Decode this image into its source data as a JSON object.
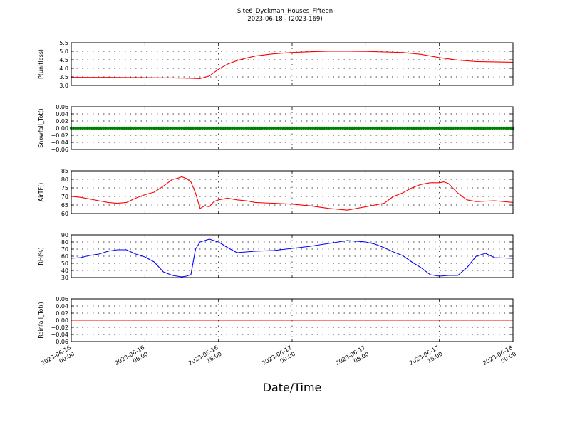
{
  "figure": {
    "title_line1": "Site6_Dyckman_Houses_Fifteen",
    "title_line2": "2023-06-18 - (2023-169)",
    "xlabel": "Date/Time"
  },
  "chart_data": {
    "type": "line",
    "title": "Site6_Dyckman_Houses_Fifteen",
    "subtitle": "2023-06-18 - (2023-169)",
    "xlabel": "Date/Time",
    "x_range": [
      "2023-06-16 00:00",
      "2023-06-18 00:00"
    ],
    "x_tick_labels": [
      [
        "2023-06-16",
        "00:00"
      ],
      [
        "2023-06-16",
        "08:00"
      ],
      [
        "2023-06-16",
        "16:00"
      ],
      [
        "2023-06-17",
        "00:00"
      ],
      [
        "2023-06-17",
        "08:00"
      ],
      [
        "2023-06-17",
        "16:00"
      ],
      [
        "2023-06-18",
        "00:00"
      ]
    ],
    "grid": true,
    "panels": [
      {
        "ylabel": "P(unitless)",
        "ylim": [
          3.0,
          5.5
        ],
        "yticks": [
          "3.0",
          "3.5",
          "4.0",
          "4.5",
          "5.0",
          "5.5"
        ],
        "color": "#ff0000",
        "marker": false,
        "series": {
          "x": [
            "2023-06-16 00:00",
            "2023-06-16 04:00",
            "2023-06-16 08:00",
            "2023-06-16 11:00",
            "2023-06-16 13:00",
            "2023-06-16 14:00",
            "2023-06-16 15:00",
            "2023-06-16 16:00",
            "2023-06-16 17:00",
            "2023-06-16 18:00",
            "2023-06-16 19:00",
            "2023-06-16 20:00",
            "2023-06-16 22:00",
            "2023-06-17 00:00",
            "2023-06-17 02:00",
            "2023-06-17 04:00",
            "2023-06-17 06:00",
            "2023-06-17 08:00",
            "2023-06-17 10:00",
            "2023-06-17 12:00",
            "2023-06-17 14:00",
            "2023-06-17 16:00",
            "2023-06-17 18:00",
            "2023-06-17 20:00",
            "2023-06-17 22:00",
            "2023-06-18 00:00"
          ],
          "y": [
            3.47,
            3.47,
            3.46,
            3.44,
            3.42,
            3.4,
            3.55,
            3.95,
            4.25,
            4.45,
            4.6,
            4.72,
            4.85,
            4.93,
            4.97,
            5.0,
            5.0,
            4.99,
            4.96,
            4.93,
            4.82,
            4.63,
            4.48,
            4.4,
            4.38,
            4.36
          ]
        }
      },
      {
        "ylabel": "Snowfall_Tot()",
        "ylim": [
          -0.06,
          0.06
        ],
        "yticks": [
          "0.06",
          "0.04",
          "0.02",
          "0.00",
          "−0.02",
          "−0.04",
          "−0.06"
        ],
        "color": "#008000",
        "marker": true,
        "series": {
          "x_start": "2023-06-16 00:00",
          "x_end": "2023-06-18 00:00",
          "interval_minutes": 15,
          "value": 0.0
        }
      },
      {
        "ylabel": "AirTF()",
        "ylim": [
          60,
          85
        ],
        "yticks": [
          "60",
          "65",
          "70",
          "75",
          "80",
          "85"
        ],
        "color": "#ff0000",
        "marker": false,
        "series": {
          "x": [
            "2023-06-16 00:00",
            "2023-06-16 01:00",
            "2023-06-16 02:00",
            "2023-06-16 03:00",
            "2023-06-16 04:00",
            "2023-06-16 05:00",
            "2023-06-16 06:00",
            "2023-06-16 07:00",
            "2023-06-16 08:00",
            "2023-06-16 09:00",
            "2023-06-16 10:00",
            "2023-06-16 11:00",
            "2023-06-16 11:30",
            "2023-06-16 12:00",
            "2023-06-16 12:30",
            "2023-06-16 13:00",
            "2023-06-16 13:30",
            "2023-06-16 14:00",
            "2023-06-16 14:30",
            "2023-06-16 15:00",
            "2023-06-16 15:30",
            "2023-06-16 16:00",
            "2023-06-16 17:00",
            "2023-06-16 18:00",
            "2023-06-16 19:00",
            "2023-06-16 20:00",
            "2023-06-16 22:00",
            "2023-06-17 00:00",
            "2023-06-17 02:00",
            "2023-06-17 04:00",
            "2023-06-17 06:00",
            "2023-06-17 08:00",
            "2023-06-17 09:00",
            "2023-06-17 10:00",
            "2023-06-17 11:00",
            "2023-06-17 12:00",
            "2023-06-17 13:00",
            "2023-06-17 14:00",
            "2023-06-17 15:00",
            "2023-06-17 16:00",
            "2023-06-17 16:30",
            "2023-06-17 17:00",
            "2023-06-17 18:00",
            "2023-06-17 19:00",
            "2023-06-17 20:00",
            "2023-06-17 22:00",
            "2023-06-18 00:00"
          ],
          "y": [
            70,
            69.5,
            68.5,
            67.5,
            66.5,
            66,
            66.5,
            69,
            71,
            72.5,
            76,
            80,
            80.5,
            81.5,
            80.5,
            78.5,
            72,
            63,
            64.5,
            64,
            67,
            68,
            69,
            68,
            67.5,
            66.5,
            66,
            65.5,
            64.5,
            63,
            62,
            64,
            65,
            66,
            70,
            72,
            75,
            77,
            78,
            78,
            78.5,
            77.5,
            72,
            68,
            67,
            67.5,
            66.5
          ]
        }
      },
      {
        "ylabel": "RH(%)",
        "ylim": [
          30,
          90
        ],
        "yticks": [
          "30",
          "40",
          "50",
          "60",
          "70",
          "80",
          "90"
        ],
        "color": "#0000ff",
        "marker": false,
        "series": {
          "x": [
            "2023-06-16 00:00",
            "2023-06-16 01:00",
            "2023-06-16 02:00",
            "2023-06-16 03:00",
            "2023-06-16 04:00",
            "2023-06-16 05:00",
            "2023-06-16 06:00",
            "2023-06-16 07:00",
            "2023-06-16 08:00",
            "2023-06-16 09:00",
            "2023-06-16 10:00",
            "2023-06-16 11:00",
            "2023-06-16 12:00",
            "2023-06-16 12:30",
            "2023-06-16 13:00",
            "2023-06-16 13:30",
            "2023-06-16 14:00",
            "2023-06-16 15:00",
            "2023-06-16 16:00",
            "2023-06-16 17:00",
            "2023-06-16 18:00",
            "2023-06-16 19:00",
            "2023-06-16 20:00",
            "2023-06-16 22:00",
            "2023-06-17 00:00",
            "2023-06-17 02:00",
            "2023-06-17 04:00",
            "2023-06-17 06:00",
            "2023-06-17 08:00",
            "2023-06-17 09:00",
            "2023-06-17 10:00",
            "2023-06-17 11:00",
            "2023-06-17 12:00",
            "2023-06-17 13:00",
            "2023-06-17 14:00",
            "2023-06-17 15:00",
            "2023-06-17 16:00",
            "2023-06-17 17:00",
            "2023-06-17 18:00",
            "2023-06-17 19:00",
            "2023-06-17 20:00",
            "2023-06-17 21:00",
            "2023-06-17 22:00",
            "2023-06-18 00:00"
          ],
          "y": [
            57,
            58,
            61,
            63,
            67,
            69,
            69,
            63,
            59,
            52,
            38,
            33,
            31,
            32,
            34,
            70,
            80,
            84,
            80,
            72,
            65,
            66,
            67,
            68,
            71,
            74,
            78,
            82,
            80,
            77,
            72,
            66,
            61,
            52,
            44,
            34,
            32,
            33,
            33,
            44,
            60,
            64,
            58,
            57
          ]
        }
      },
      {
        "ylabel": "Rainfall_Tot()",
        "ylim": [
          -0.06,
          0.06
        ],
        "yticks": [
          "0.06",
          "0.04",
          "0.02",
          "0.00",
          "−0.02",
          "−0.04",
          "−0.06"
        ],
        "color": "#ff0000",
        "marker": false,
        "series": {
          "x": [
            "2023-06-16 00:00",
            "2023-06-18 00:00"
          ],
          "y": [
            0.0,
            0.0
          ]
        }
      }
    ]
  }
}
